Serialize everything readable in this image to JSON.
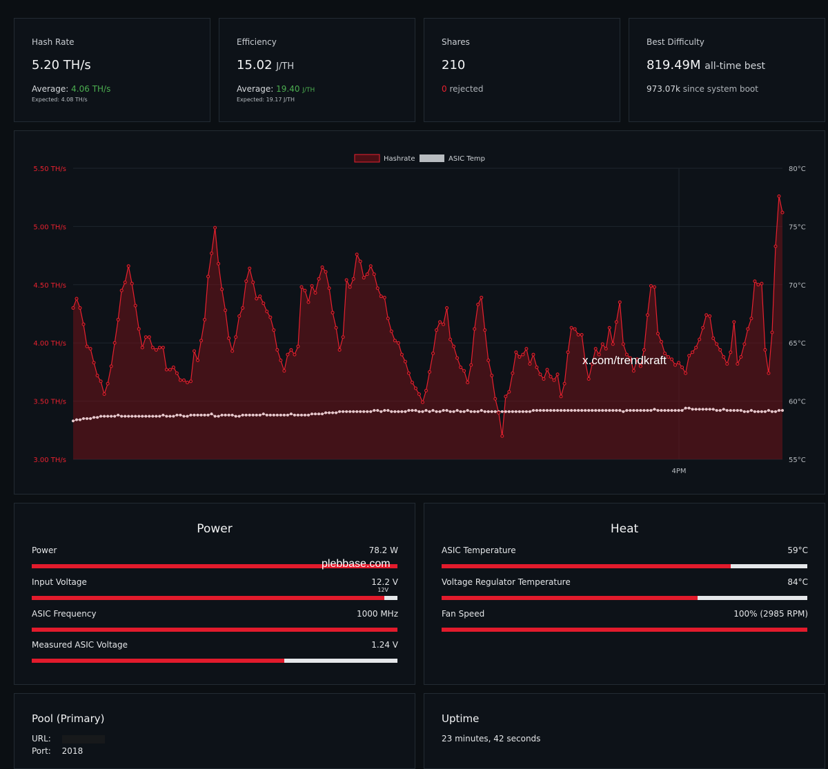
{
  "stats": {
    "hashrate": {
      "label": "Hash Rate",
      "value": "5.20 TH/s",
      "avg_label": "Average:",
      "avg_value": "4.06 TH/s",
      "expected": "Expected: 4.08 TH/s"
    },
    "efficiency": {
      "label": "Efficiency",
      "value": "15.02",
      "unit": "J/TH",
      "avg_label": "Average:",
      "avg_value": "19.40",
      "avg_unit": "J/TH",
      "expected": "Expected: 19.17 J/TH"
    },
    "shares": {
      "label": "Shares",
      "value": "210",
      "rejected_count": "0",
      "rejected_label": "rejected"
    },
    "best": {
      "label": "Best Difficulty",
      "value": "819.49M",
      "value_suffix": "all-time best",
      "boot_value": "973.07k",
      "boot_label": "since system boot"
    }
  },
  "chart_data": {
    "type": "line",
    "legend": [
      {
        "name": "Hashrate",
        "color": "#e8212f"
      },
      {
        "name": "ASIC Temp",
        "color": "#b8bcc0"
      }
    ],
    "legend_position": "top-center",
    "y_left": {
      "ticks": [
        "5.50 TH/s",
        "5.00 TH/s",
        "4.50 TH/s",
        "4.00 TH/s",
        "3.50 TH/s",
        "3.00 TH/s"
      ],
      "range": [
        3.0,
        5.5
      ],
      "color": "#e8212f"
    },
    "y_right": {
      "ticks": [
        "80°C",
        "75°C",
        "70°C",
        "65°C",
        "60°C",
        "55°C"
      ],
      "range": [
        55,
        80
      ]
    },
    "x_ticks": [
      "4PM"
    ],
    "series": [
      {
        "name": "Hashrate",
        "values": [
          4.3,
          4.38,
          4.3,
          4.16,
          3.97,
          3.95,
          3.83,
          3.72,
          3.67,
          3.56,
          3.65,
          3.8,
          4.0,
          4.2,
          4.45,
          4.52,
          4.66,
          4.51,
          4.32,
          4.12,
          3.96,
          4.05,
          4.05,
          3.96,
          3.94,
          3.96,
          3.96,
          3.77,
          3.77,
          3.79,
          3.74,
          3.68,
          3.68,
          3.66,
          3.67,
          3.93,
          3.85,
          4.02,
          4.2,
          4.57,
          4.77,
          4.99,
          4.68,
          4.46,
          4.28,
          4.04,
          3.93,
          4.05,
          4.23,
          4.3,
          4.53,
          4.64,
          4.52,
          4.38,
          4.4,
          4.34,
          4.27,
          4.22,
          4.11,
          3.94,
          3.85,
          3.76,
          3.9,
          3.94,
          3.9,
          3.97,
          4.48,
          4.45,
          4.35,
          4.49,
          4.43,
          4.55,
          4.65,
          4.61,
          4.47,
          4.26,
          4.13,
          3.94,
          4.05,
          4.54,
          4.48,
          4.55,
          4.76,
          4.7,
          4.56,
          4.59,
          4.66,
          4.59,
          4.47,
          4.4,
          4.39,
          4.21,
          4.1,
          4.02,
          4.0,
          3.9,
          3.84,
          3.74,
          3.66,
          3.61,
          3.56,
          3.49,
          3.59,
          3.75,
          3.91,
          4.11,
          4.18,
          4.16,
          4.3,
          4.03,
          3.97,
          3.87,
          3.79,
          3.76,
          3.66,
          3.81,
          4.12,
          4.33,
          4.39,
          4.11,
          3.85,
          3.72,
          3.52,
          3.4,
          3.2,
          3.54,
          3.58,
          3.74,
          3.92,
          3.88,
          3.9,
          3.95,
          3.82,
          3.9,
          3.79,
          3.73,
          3.69,
          3.77,
          3.71,
          3.68,
          3.73,
          3.54,
          3.65,
          3.92,
          4.13,
          4.12,
          4.07,
          4.07,
          3.84,
          3.69,
          3.82,
          3.95,
          3.9,
          3.99,
          3.95,
          4.13,
          3.99,
          4.18,
          4.35,
          3.99,
          3.9,
          3.87,
          3.76,
          3.86,
          3.8,
          3.94,
          4.24,
          4.49,
          4.48,
          4.08,
          4.01,
          3.91,
          3.88,
          3.86,
          3.81,
          3.83,
          3.79,
          3.74,
          3.89,
          3.92,
          3.96,
          4.03,
          4.13,
          4.24,
          4.23,
          4.04,
          3.99,
          3.94,
          3.88,
          3.82,
          3.92,
          4.18,
          3.82,
          3.88,
          3.99,
          4.12,
          4.21,
          4.53,
          4.5,
          4.51,
          3.94,
          3.74,
          4.09,
          4.83,
          5.26,
          5.12
        ]
      },
      {
        "name": "ASIC Temp",
        "values": [
          58.3,
          58.4,
          58.4,
          58.5,
          58.5,
          58.5,
          58.6,
          58.6,
          58.7,
          58.7,
          58.7,
          58.7,
          58.7,
          58.8,
          58.7,
          58.7,
          58.7,
          58.7,
          58.7,
          58.7,
          58.7,
          58.7,
          58.7,
          58.7,
          58.7,
          58.7,
          58.8,
          58.7,
          58.7,
          58.7,
          58.8,
          58.8,
          58.7,
          58.7,
          58.8,
          58.8,
          58.8,
          58.8,
          58.8,
          58.8,
          58.9,
          58.7,
          58.7,
          58.8,
          58.8,
          58.8,
          58.8,
          58.7,
          58.7,
          58.8,
          58.8,
          58.8,
          58.8,
          58.8,
          58.8,
          58.9,
          58.8,
          58.8,
          58.8,
          58.8,
          58.8,
          58.8,
          58.8,
          58.9,
          58.8,
          58.8,
          58.8,
          58.8,
          58.8,
          58.9,
          58.9,
          58.9,
          58.9,
          59.0,
          59.0,
          59.0,
          59.0,
          59.1,
          59.1,
          59.1,
          59.1,
          59.1,
          59.1,
          59.1,
          59.1,
          59.1,
          59.1,
          59.2,
          59.2,
          59.1,
          59.2,
          59.2,
          59.1,
          59.1,
          59.1,
          59.1,
          59.1,
          59.2,
          59.2,
          59.2,
          59.1,
          59.1,
          59.2,
          59.1,
          59.2,
          59.1,
          59.1,
          59.2,
          59.2,
          59.1,
          59.1,
          59.2,
          59.1,
          59.1,
          59.2,
          59.1,
          59.1,
          59.1,
          59.2,
          59.1,
          59.1,
          59.1,
          59.1,
          59.1,
          59.1,
          59.1,
          59.1,
          59.1,
          59.1,
          59.1,
          59.1,
          59.1,
          59.1,
          59.2,
          59.2,
          59.2,
          59.2,
          59.2,
          59.2,
          59.2,
          59.2,
          59.2,
          59.2,
          59.2,
          59.2,
          59.2,
          59.2,
          59.2,
          59.2,
          59.2,
          59.2,
          59.2,
          59.2,
          59.2,
          59.2,
          59.2,
          59.2,
          59.2,
          59.2,
          59.1,
          59.2,
          59.2,
          59.2,
          59.2,
          59.2,
          59.2,
          59.2,
          59.2,
          59.3,
          59.2,
          59.2,
          59.2,
          59.2,
          59.2,
          59.2,
          59.2,
          59.2,
          59.4,
          59.4,
          59.3,
          59.3,
          59.3,
          59.3,
          59.3,
          59.3,
          59.3,
          59.2,
          59.2,
          59.3,
          59.2,
          59.2,
          59.2,
          59.2,
          59.2,
          59.1,
          59.1,
          59.2,
          59.1,
          59.1,
          59.1,
          59.1,
          59.2,
          59.1,
          59.1,
          59.2,
          59.2
        ]
      }
    ]
  },
  "watermark_chart": "x.com/trendkraft",
  "watermark_power": "plebbase.com",
  "power": {
    "title": "Power",
    "rows": [
      {
        "label": "Power",
        "value": "78.2 W",
        "fill": 1.0
      },
      {
        "label": "Input Voltage",
        "value": "12.2 V",
        "fill": 0.96,
        "marker": "12V"
      },
      {
        "label": "ASIC Frequency",
        "value": "1000 MHz",
        "fill": 1.0
      },
      {
        "label": "Measured ASIC Voltage",
        "value": "1.24 V",
        "fill": 0.69
      }
    ]
  },
  "heat": {
    "title": "Heat",
    "rows": [
      {
        "label": "ASIC Temperature",
        "value": "59°C",
        "fill": 0.79
      },
      {
        "label": "Voltage Regulator Temperature",
        "value": "84°C",
        "fill": 0.7
      },
      {
        "label": "Fan Speed",
        "value": "100% (2985 RPM)",
        "fill": 1.0
      }
    ]
  },
  "pool": {
    "title": "Pool (Primary)",
    "url_label": "URL:",
    "port_label": "Port:",
    "port_value": "2018"
  },
  "uptime": {
    "title": "Uptime",
    "value": "23 minutes, 42 seconds"
  },
  "colors": {
    "accent": "#e21b2c",
    "green": "#4caf50",
    "background": "#0b0f13",
    "card": "#0d1218"
  }
}
